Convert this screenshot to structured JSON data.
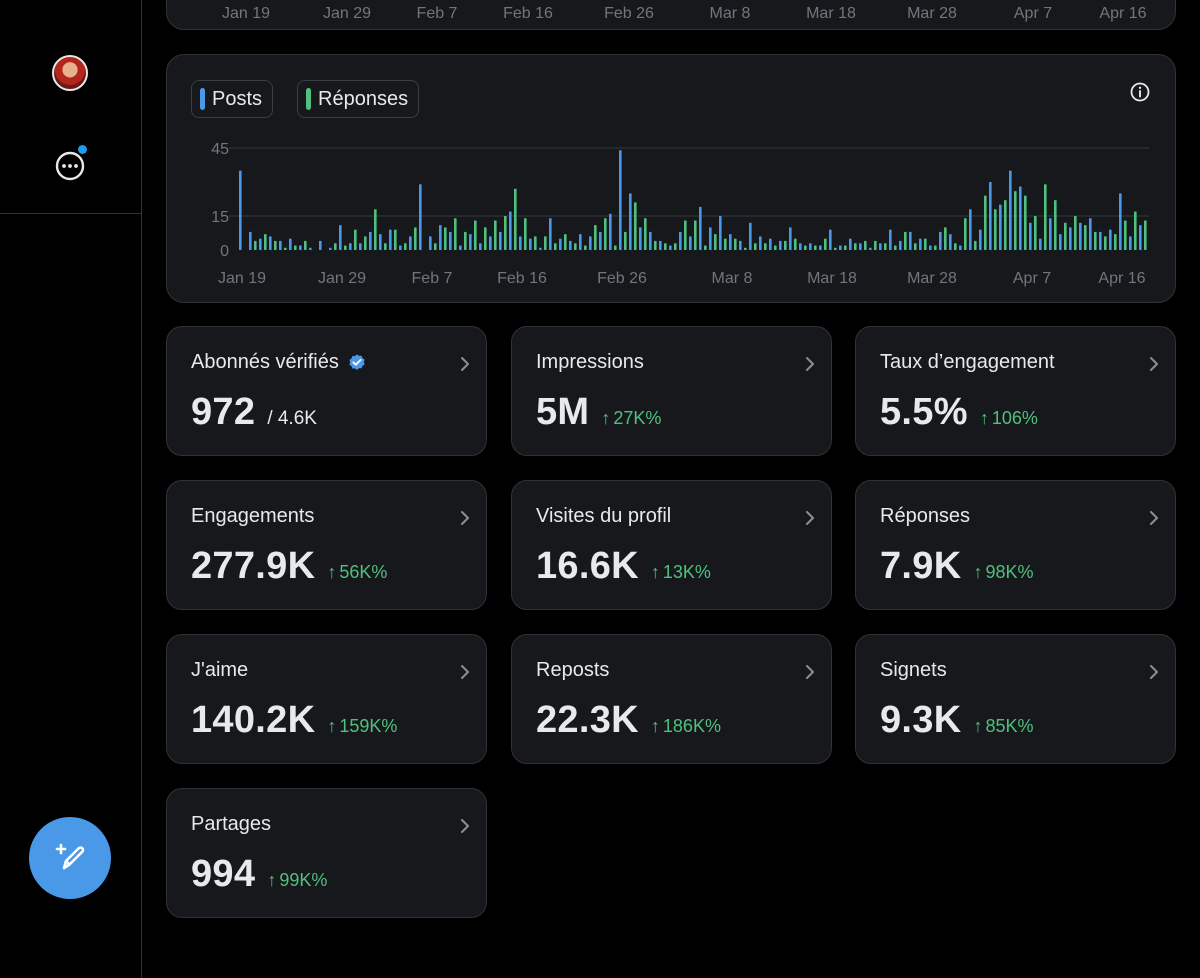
{
  "top_chart": {
    "x_ticks": [
      "Jan 19",
      "Jan 29",
      "Feb 7",
      "Feb 16",
      "Feb 26",
      "Mar 8",
      "Mar 18",
      "Mar 28",
      "Apr 7",
      "Apr 16"
    ]
  },
  "chart_data": {
    "type": "bar",
    "title": "",
    "legend": [
      "Posts",
      "Réponses"
    ],
    "colors": {
      "Posts": "#4a99e9",
      "Réponses": "#4fc07d"
    },
    "ylim": [
      0,
      45
    ],
    "y_ticks": [
      0,
      15,
      45
    ],
    "x_tick_labels": [
      "Jan 19",
      "Jan 29",
      "Feb 7",
      "Feb 16",
      "Feb 26",
      "Mar 8",
      "Mar 18",
      "Mar 28",
      "Apr 7",
      "Apr 16"
    ],
    "categories": [
      "Jan 19",
      "Jan 20",
      "Jan 21",
      "Jan 22",
      "Jan 23",
      "Jan 24",
      "Jan 25",
      "Jan 26",
      "Jan 27",
      "Jan 28",
      "Jan 29",
      "Jan 30",
      "Jan 31",
      "Feb 1",
      "Feb 2",
      "Feb 3",
      "Feb 4",
      "Feb 5",
      "Feb 6",
      "Feb 7",
      "Feb 8",
      "Feb 9",
      "Feb 10",
      "Feb 11",
      "Feb 12",
      "Feb 13",
      "Feb 14",
      "Feb 15",
      "Feb 16",
      "Feb 17",
      "Feb 18",
      "Feb 19",
      "Feb 20",
      "Feb 21",
      "Feb 22",
      "Feb 23",
      "Feb 24",
      "Feb 25",
      "Feb 26",
      "Feb 27",
      "Feb 28",
      "Feb 29",
      "Mar 1",
      "Mar 2",
      "Mar 3",
      "Mar 4",
      "Mar 5",
      "Mar 6",
      "Mar 7",
      "Mar 8",
      "Mar 9",
      "Mar 10",
      "Mar 11",
      "Mar 12",
      "Mar 13",
      "Mar 14",
      "Mar 15",
      "Mar 16",
      "Mar 17",
      "Mar 18",
      "Mar 19",
      "Mar 20",
      "Mar 21",
      "Mar 22",
      "Mar 23",
      "Mar 24",
      "Mar 25",
      "Mar 26",
      "Mar 27",
      "Mar 28",
      "Mar 29",
      "Mar 30",
      "Mar 31",
      "Apr 1",
      "Apr 2",
      "Apr 3",
      "Apr 4",
      "Apr 5",
      "Apr 6",
      "Apr 7",
      "Apr 8",
      "Apr 9",
      "Apr 10",
      "Apr 11",
      "Apr 12",
      "Apr 13",
      "Apr 14",
      "Apr 15",
      "Apr 16",
      "Apr 17",
      "Apr 18"
    ],
    "series": [
      {
        "name": "Posts",
        "values": [
          35,
          8,
          5,
          6,
          4,
          5,
          2,
          1,
          4,
          1,
          11,
          3,
          3,
          8,
          7,
          9,
          2,
          6,
          29,
          6,
          11,
          8,
          2,
          7,
          3,
          6,
          8,
          17,
          6,
          5,
          1,
          14,
          5,
          4,
          7,
          6,
          8,
          16,
          44,
          25,
          10,
          8,
          4,
          2,
          8,
          6,
          19,
          10,
          15,
          7,
          4,
          12,
          6,
          5,
          4,
          10,
          3,
          3,
          2,
          9,
          2,
          5,
          3,
          1,
          3,
          9,
          4,
          8,
          5,
          2,
          8,
          7,
          2,
          18,
          9,
          30,
          20,
          35,
          28,
          12,
          5,
          14,
          7,
          10,
          12,
          14,
          8,
          9,
          25,
          6,
          11
        ]
      },
      {
        "name": "Réponses",
        "values": [
          0,
          4,
          7,
          4,
          1,
          2,
          4,
          0,
          0,
          3,
          2,
          9,
          6,
          18,
          3,
          9,
          3,
          10,
          0,
          3,
          10,
          14,
          8,
          13,
          10,
          13,
          15,
          27,
          14,
          6,
          6,
          3,
          7,
          3,
          2,
          11,
          14,
          2,
          8,
          21,
          14,
          4,
          3,
          3,
          13,
          13,
          2,
          7,
          5,
          5,
          1,
          3,
          3,
          2,
          4,
          5,
          2,
          2,
          5,
          1,
          2,
          3,
          4,
          4,
          3,
          2,
          8,
          3,
          5,
          2,
          10,
          3,
          14,
          4,
          24,
          18,
          22,
          26,
          24,
          15,
          29,
          22,
          12,
          15,
          11,
          8,
          6,
          7,
          13,
          17,
          13
        ]
      }
    ]
  },
  "metrics": [
    {
      "label": "Abonnés vérifiés",
      "value": "972",
      "secondary": "/ 4.6K",
      "verified": true
    },
    {
      "label": "Impressions",
      "value": "5M",
      "change": "27K%"
    },
    {
      "label": "Taux d’engagement",
      "value": "5.5%",
      "change": "106%"
    },
    {
      "label": "Engagements",
      "value": "277.9K",
      "change": "56K%"
    },
    {
      "label": "Visites du profil",
      "value": "16.6K",
      "change": "13K%"
    },
    {
      "label": "Réponses",
      "value": "7.9K",
      "change": "98K%"
    },
    {
      "label": "J'aime",
      "value": "140.2K",
      "change": "159K%"
    },
    {
      "label": "Reposts",
      "value": "22.3K",
      "change": "186K%"
    },
    {
      "label": "Signets",
      "value": "9.3K",
      "change": "85K%"
    },
    {
      "label": "Partages",
      "value": "994",
      "change": "99K%"
    }
  ],
  "icons": {
    "avatar": "avatar",
    "more": "more-icon",
    "compose": "compose-icon",
    "info": "info-icon",
    "chevron": "chevron-right-icon",
    "verified": "verified-badge-icon",
    "up_arrow": "arrow-up-icon"
  },
  "change_arrow": "↑"
}
